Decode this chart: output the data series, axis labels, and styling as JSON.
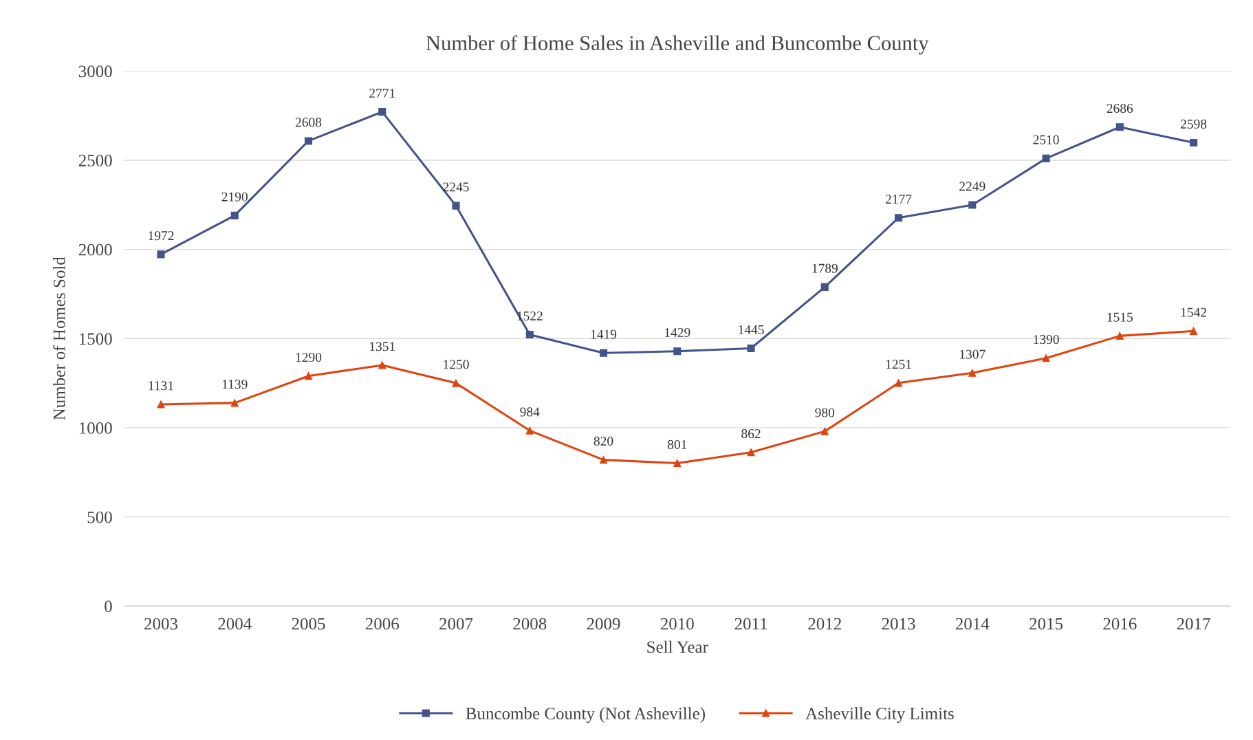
{
  "chart_data": {
    "type": "line",
    "title": "Number of Home Sales in Asheville and Buncombe County",
    "xlabel": "Sell Year",
    "ylabel": "Number of Homes Sold",
    "categories": [
      "2003",
      "2004",
      "2005",
      "2006",
      "2007",
      "2008",
      "2009",
      "2010",
      "2011",
      "2012",
      "2013",
      "2014",
      "2015",
      "2016",
      "2017"
    ],
    "series": [
      {
        "name": "Buncombe County (Not Asheville)",
        "color": "#44548a",
        "marker": "square",
        "values": [
          1972,
          2190,
          2608,
          2771,
          2245,
          1522,
          1419,
          1429,
          1445,
          1789,
          2177,
          2249,
          2510,
          2686,
          2598
        ]
      },
      {
        "name": "Asheville City Limits",
        "color": "#e0440e",
        "marker": "triangle",
        "values": [
          1131,
          1139,
          1290,
          1351,
          1250,
          984,
          820,
          801,
          862,
          980,
          1251,
          1307,
          1390,
          1515,
          1542
        ]
      }
    ],
    "ylim": [
      0,
      3000
    ],
    "yticks": [
      0,
      500,
      1000,
      1500,
      2000,
      2500,
      3000
    ],
    "grid": "y",
    "legend": "bottom",
    "data_labels": true,
    "line_style": "solid"
  }
}
